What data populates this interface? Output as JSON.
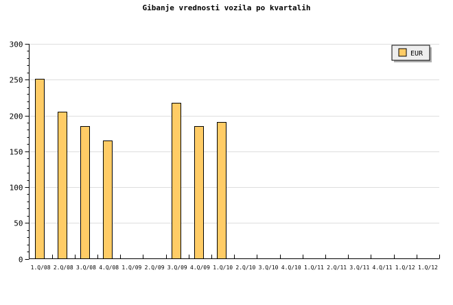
{
  "chart_data": {
    "type": "bar",
    "title": "Gibanje vrednosti vozila po kvartalih",
    "xlabel": "",
    "ylabel": "",
    "categories": [
      "1.Q/08",
      "2.Q/08",
      "3.Q/08",
      "4.Q/08",
      "1.Q/09",
      "2.Q/09",
      "3.Q/09",
      "4.Q/09",
      "1.Q/10",
      "2.Q/10",
      "3.Q/10",
      "4.Q/10",
      "1.Q/11",
      "2.Q/11",
      "3.Q/11",
      "4.Q/11",
      "1.Q/12",
      "1.Q/12"
    ],
    "series": [
      {
        "name": "EUR",
        "color": "#ffcc66",
        "values": [
          251,
          205,
          185,
          165,
          null,
          null,
          218,
          185,
          191,
          null,
          null,
          null,
          null,
          null,
          null,
          null,
          null,
          null
        ]
      }
    ],
    "ylim": [
      0,
      300
    ],
    "yticks": [
      0,
      50,
      100,
      150,
      200,
      250,
      300
    ],
    "grid": true,
    "legend": "top-right"
  }
}
